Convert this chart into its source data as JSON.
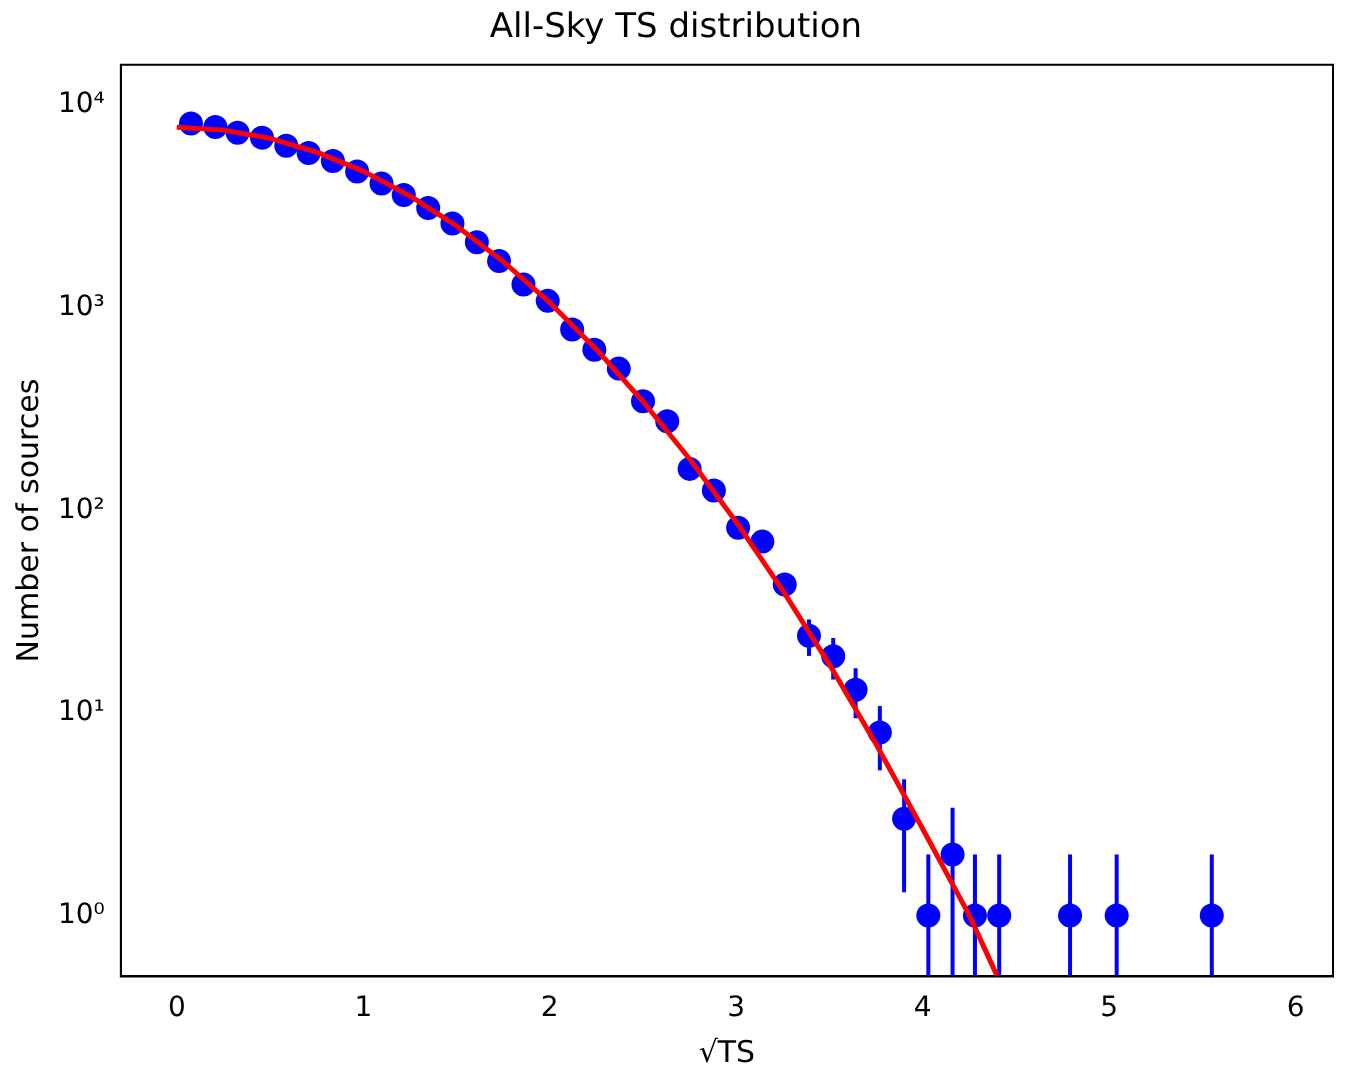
{
  "chart_data": {
    "type": "scatter",
    "title": "All-Sky TS distribution",
    "xlabel": "√TS",
    "ylabel": "Number of sources",
    "log": "y",
    "xlim": [
      -0.3,
      6.2
    ],
    "ylim": [
      0.5,
      15800
    ],
    "xticks": [
      0,
      1,
      2,
      3,
      4,
      5,
      6
    ],
    "yticks": [
      {
        "value": 1,
        "label": "10⁰"
      },
      {
        "value": 10,
        "label": "10¹"
      },
      {
        "value": 100,
        "label": "10²"
      },
      {
        "value": 1000,
        "label": "10³"
      },
      {
        "value": 10000,
        "label": "10⁴"
      }
    ],
    "series": [
      {
        "marker": "circle",
        "color": "#0000ff",
        "x": [
          0.076,
          0.207,
          0.326,
          0.457,
          0.587,
          0.707,
          0.837,
          0.967,
          1.098,
          1.217,
          1.348,
          1.478,
          1.609,
          1.728,
          1.859,
          1.989,
          2.12,
          2.239,
          2.37,
          2.5,
          2.63,
          2.75,
          2.88,
          3.01,
          3.14,
          3.26,
          3.39,
          3.52,
          3.64,
          3.77,
          3.9,
          4.03,
          4.16,
          4.28,
          4.41,
          4.79,
          5.04,
          5.55
        ],
        "values": [
          8100,
          7800,
          7300,
          6900,
          6300,
          5800,
          5300,
          4700,
          4100,
          3600,
          3100,
          2600,
          2100,
          1700,
          1300,
          1080,
          780,
          620,
          500,
          345,
          275,
          160,
          125,
          82,
          70,
          43,
          24,
          19,
          13,
          8,
          3,
          1,
          2,
          1,
          1,
          1,
          1,
          1
        ],
        "errors": [
          null,
          null,
          null,
          null,
          null,
          null,
          null,
          null,
          null,
          null,
          null,
          null,
          null,
          null,
          null,
          null,
          null,
          null,
          null,
          null,
          null,
          null,
          null,
          null,
          null,
          null,
          4.9,
          4.4,
          3.6,
          2.8,
          [
            1.3,
            4.7
          ],
          [
            0.5,
            2
          ],
          [
            0.5,
            3.4
          ],
          [
            0.5,
            2
          ],
          [
            0.5,
            2
          ],
          [
            0.5,
            2
          ],
          [
            0.5,
            2
          ],
          [
            0.5,
            2
          ]
        ]
      },
      {
        "type": "line",
        "color": "#ff0000",
        "line_style": "solid",
        "x": [
          0,
          0.25,
          0.5,
          0.75,
          1,
          1.25,
          1.5,
          1.75,
          2,
          2.25,
          2.5,
          2.75,
          3,
          3.25,
          3.5,
          3.75,
          4,
          4.25,
          4.4
        ],
        "values": [
          7760,
          7520,
          6850,
          5860,
          4720,
          3560,
          2530,
          1690,
          1060,
          622,
          344,
          179,
          87.5,
          40.1,
          17.3,
          7.0,
          2.67,
          1.0,
          0.5
        ]
      }
    ]
  }
}
